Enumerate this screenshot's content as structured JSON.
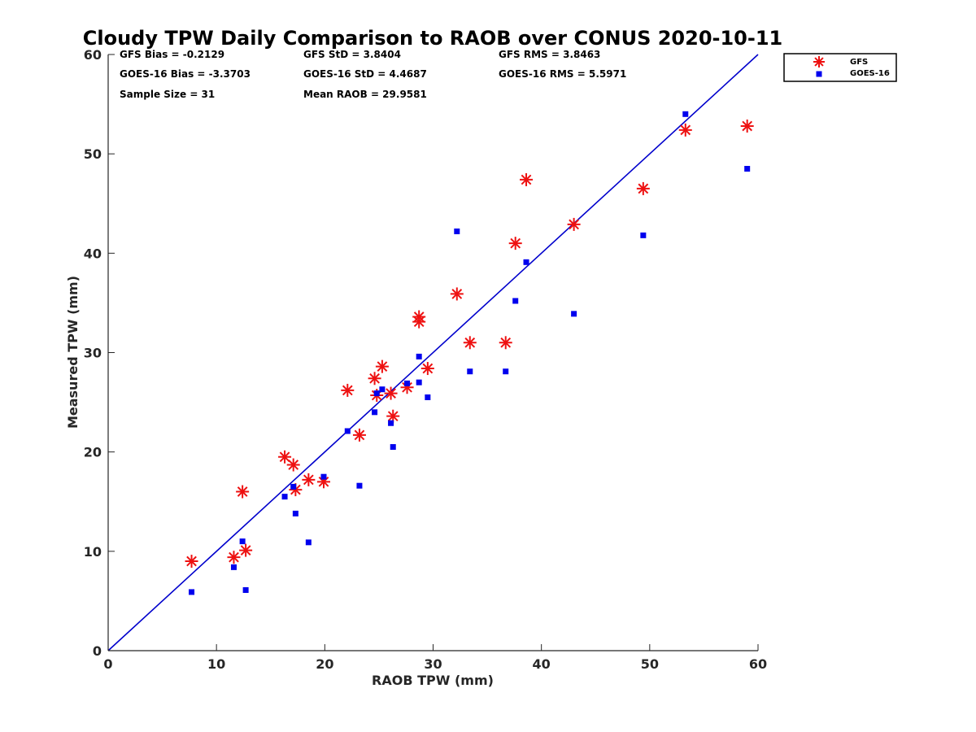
{
  "chart_data": {
    "type": "scatter",
    "title": "Cloudy TPW Daily Comparison to RAOB over CONUS 2020-10-11",
    "xlabel": "RAOB TPW (mm)",
    "ylabel": "Measured TPW (mm)",
    "xlim": [
      0,
      60
    ],
    "ylim": [
      0,
      60
    ],
    "xticks": [
      "0",
      "10",
      "20",
      "30",
      "40",
      "50",
      "60"
    ],
    "yticks": [
      "0",
      "10",
      "20",
      "30",
      "40",
      "50",
      "60"
    ],
    "grid": false,
    "legend_position": "outside-top-right",
    "reference_line": {
      "x": [
        0,
        60
      ],
      "y": [
        0,
        60
      ],
      "color": "#0000cc"
    },
    "stats": [
      "GFS Bias = -0.2129",
      "GFS StD = 3.8404",
      "GFS RMS = 3.8463",
      "GOES-16 Bias = -3.3703",
      "GOES-16 StD = 4.4687",
      "GOES-16 RMS = 5.5971",
      "Sample Size = 31",
      "Mean RAOB = 29.9581"
    ],
    "series": [
      {
        "name": "GFS",
        "marker": "asterisk",
        "color": "#ee1111",
        "points": [
          [
            7.7,
            9.0
          ],
          [
            11.6,
            9.4
          ],
          [
            12.4,
            16.0
          ],
          [
            12.7,
            10.1
          ],
          [
            16.3,
            19.5
          ],
          [
            17.1,
            18.7
          ],
          [
            17.3,
            16.2
          ],
          [
            18.5,
            17.2
          ],
          [
            19.9,
            17.0
          ],
          [
            22.1,
            26.2
          ],
          [
            23.2,
            21.7
          ],
          [
            24.6,
            27.4
          ],
          [
            24.8,
            25.7
          ],
          [
            25.3,
            28.6
          ],
          [
            26.1,
            25.9
          ],
          [
            26.3,
            23.6
          ],
          [
            27.6,
            26.5
          ],
          [
            28.7,
            33.6
          ],
          [
            28.7,
            33.1
          ],
          [
            29.5,
            28.4
          ],
          [
            32.2,
            35.9
          ],
          [
            33.4,
            31.0
          ],
          [
            36.7,
            31.0
          ],
          [
            37.6,
            41.0
          ],
          [
            38.6,
            47.4
          ],
          [
            43.0,
            42.9
          ],
          [
            49.4,
            46.5
          ],
          [
            53.3,
            52.4
          ],
          [
            59.0,
            52.8
          ]
        ]
      },
      {
        "name": "GOES-16",
        "marker": "square",
        "color": "#0000ee",
        "points": [
          [
            7.7,
            5.9
          ],
          [
            11.6,
            8.4
          ],
          [
            12.4,
            11.0
          ],
          [
            12.7,
            6.1
          ],
          [
            16.3,
            15.5
          ],
          [
            17.1,
            16.5
          ],
          [
            17.3,
            13.8
          ],
          [
            18.5,
            10.9
          ],
          [
            19.9,
            17.5
          ],
          [
            22.1,
            22.1
          ],
          [
            23.2,
            16.6
          ],
          [
            24.6,
            24.0
          ],
          [
            24.8,
            25.9
          ],
          [
            25.3,
            26.3
          ],
          [
            26.1,
            22.9
          ],
          [
            26.3,
            20.5
          ],
          [
            27.6,
            26.9
          ],
          [
            28.7,
            29.6
          ],
          [
            28.7,
            27.0
          ],
          [
            29.5,
            25.5
          ],
          [
            32.2,
            42.2
          ],
          [
            33.4,
            28.1
          ],
          [
            36.7,
            28.1
          ],
          [
            37.6,
            35.2
          ],
          [
            38.6,
            39.1
          ],
          [
            43.0,
            33.9
          ],
          [
            49.4,
            41.8
          ],
          [
            53.3,
            54.0
          ],
          [
            59.0,
            48.5
          ]
        ]
      }
    ]
  }
}
